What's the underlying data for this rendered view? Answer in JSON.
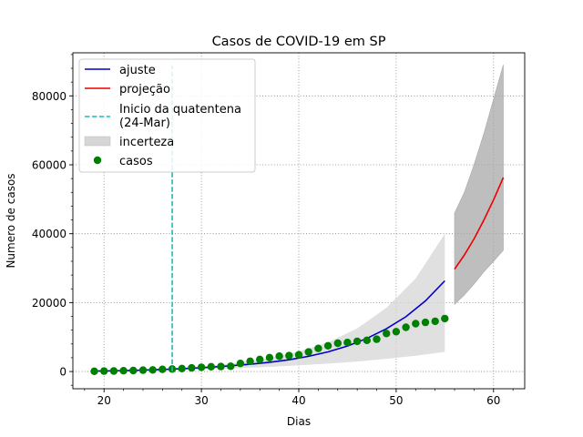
{
  "chart_data": {
    "type": "line",
    "title": "Casos de COVID-19 em SP",
    "xlabel": "Dias",
    "ylabel": "Numero de casos",
    "xlim": [
      16.8,
      63.2
    ],
    "ylim": [
      -5000,
      92500
    ],
    "xticks": [
      20,
      30,
      40,
      50,
      60
    ],
    "yticks": [
      0,
      20000,
      40000,
      60000,
      80000
    ],
    "grid": true,
    "legend_position": "top-left",
    "colors": {
      "ajuste": "#0000cc",
      "projecao": "#ee0000",
      "quarentena": "#17bdbd",
      "incerteza_fit": "#d6d6d6",
      "incerteza_proj": "#a8a8a8",
      "casos": "#008000",
      "grid": "#808080"
    },
    "legend": [
      {
        "label": "ajuste",
        "kind": "line",
        "color": "#0000cc"
      },
      {
        "label": "projeção",
        "kind": "line",
        "color": "#ee0000"
      },
      {
        "label": "Inicio da quatentena",
        "label2": "(24-Mar)",
        "kind": "dashed",
        "color": "#17bdbd"
      },
      {
        "label": "incerteza",
        "kind": "band",
        "color": "#d6d6d6"
      },
      {
        "label": "casos",
        "kind": "marker",
        "color": "#008000"
      }
    ],
    "series": [
      {
        "name": "casos",
        "kind": "scatter",
        "x": [
          19,
          20,
          21,
          22,
          23,
          24,
          25,
          26,
          27,
          28,
          29,
          30,
          31,
          32,
          33,
          34,
          35,
          36,
          37,
          38,
          39,
          40,
          41,
          42,
          43,
          44,
          45,
          46,
          47,
          48,
          49,
          50,
          51,
          52,
          53,
          54,
          55
        ],
        "y": [
          65,
          136,
          152,
          240,
          286,
          396,
          459,
          631,
          745,
          862,
          1052,
          1223,
          1406,
          1451,
          1517,
          2339,
          2981,
          3506,
          4048,
          4466,
          4620,
          4866,
          5682,
          6708,
          7480,
          8216,
          8419,
          8755,
          9045,
          9371,
          11043,
          11568,
          12841,
          13894,
          14267,
          14580,
          15385
        ]
      },
      {
        "name": "ajuste",
        "kind": "line",
        "x": [
          19,
          21,
          23,
          25,
          27,
          29,
          31,
          33,
          35,
          37,
          39,
          41,
          43,
          45,
          47,
          49,
          51,
          53,
          55
        ],
        "y": [
          120,
          210,
          340,
          500,
          700,
          950,
          1250,
          1650,
          2100,
          2700,
          3400,
          4400,
          5700,
          7400,
          9600,
          12400,
          15900,
          20500,
          26300
        ]
      },
      {
        "name": "incerteza_ajuste",
        "kind": "band",
        "x": [
          19,
          22,
          25,
          28,
          31,
          34,
          37,
          40,
          43,
          46,
          49,
          52,
          55
        ],
        "lower": [
          60,
          150,
          280,
          450,
          700,
          1000,
          1350,
          1800,
          2300,
          2900,
          3700,
          4600,
          5700
        ],
        "upper": [
          200,
          400,
          700,
          1150,
          1750,
          2650,
          3900,
          5800,
          8500,
          12500,
          18500,
          27000,
          40000
        ]
      },
      {
        "name": "projeção",
        "kind": "line",
        "x": [
          56,
          57,
          58,
          59,
          60,
          61
        ],
        "y": [
          29700,
          33800,
          38500,
          43900,
          49800,
          56300
        ]
      },
      {
        "name": "incerteza_projecao",
        "kind": "band",
        "x": [
          56,
          57,
          58,
          59,
          60,
          61
        ],
        "lower": [
          19500,
          22200,
          25400,
          28900,
          32000,
          35200
        ],
        "upper": [
          46000,
          52000,
          60000,
          69000,
          79000,
          89000
        ]
      },
      {
        "name": "Inicio da quatentena (24-Mar)",
        "kind": "vline",
        "x": 27,
        "y_range": [
          0,
          89000
        ]
      }
    ]
  }
}
